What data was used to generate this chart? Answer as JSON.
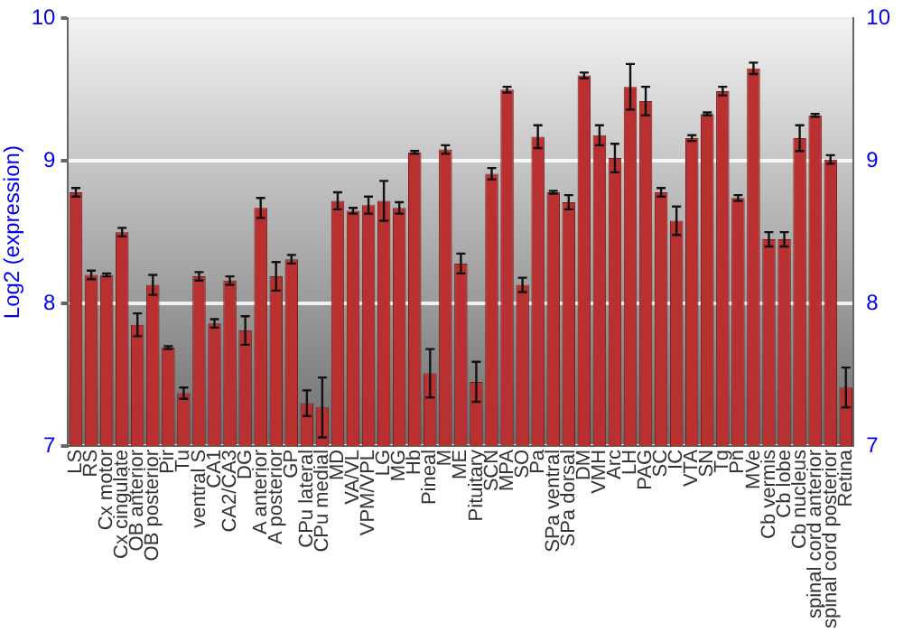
{
  "chart_data": {
    "type": "bar",
    "ylabel": "Log2 (expression)",
    "categories": [
      "LS",
      "RS",
      "Cx motor",
      "Cx cingulate",
      "OB anterior",
      "OB posterior",
      "Pir",
      "Tu",
      "ventral S",
      "CA1",
      "CA2/CA3",
      "DG",
      "A anterior",
      "A posterior",
      "GP",
      "CPu lateral",
      "CPu medial",
      "MD",
      "VA/VL",
      "VPM/VPL",
      "LG",
      "MG",
      "Hb",
      "Pineal",
      "M",
      "ME",
      "Pituitary",
      "SCN",
      "MPA",
      "SO",
      "Pa",
      "SPa ventral",
      "SPa dorsal",
      "DM",
      "VMH",
      "Arc",
      "LH",
      "PAG",
      "SC",
      "IC",
      "VTA",
      "SN",
      "Tg",
      "Pn",
      "MVe",
      "Cb vermis",
      "Cb lobe",
      "Cb nucleus",
      "spinal cord anterior",
      "spinal cord posterior",
      "Retina"
    ],
    "values": [
      8.78,
      8.2,
      8.2,
      8.5,
      7.85,
      8.13,
      7.69,
      7.37,
      8.19,
      7.86,
      8.16,
      7.81,
      8.67,
      8.19,
      8.31,
      7.3,
      7.27,
      8.72,
      8.65,
      8.69,
      8.72,
      8.67,
      9.06,
      7.51,
      9.08,
      8.28,
      7.45,
      8.91,
      9.5,
      8.13,
      9.17,
      8.78,
      8.71,
      9.6,
      9.18,
      9.02,
      9.52,
      9.42,
      8.78,
      8.58,
      9.16,
      9.33,
      9.49,
      8.74,
      9.65,
      8.45,
      8.45,
      9.16,
      9.32,
      9.01,
      7.41
    ],
    "errors": [
      0.03,
      0.03,
      0.01,
      0.03,
      0.08,
      0.07,
      0.01,
      0.04,
      0.03,
      0.03,
      0.03,
      0.1,
      0.07,
      0.1,
      0.03,
      0.09,
      0.21,
      0.06,
      0.02,
      0.06,
      0.14,
      0.04,
      0.01,
      0.17,
      0.03,
      0.07,
      0.14,
      0.04,
      0.02,
      0.05,
      0.08,
      0.01,
      0.05,
      0.02,
      0.07,
      0.1,
      0.16,
      0.1,
      0.03,
      0.1,
      0.02,
      0.01,
      0.03,
      0.02,
      0.04,
      0.05,
      0.05,
      0.09,
      0.01,
      0.03,
      0.14
    ],
    "color": "#b83030",
    "ylim": [
      7,
      10
    ],
    "yticks": [
      7,
      8,
      9,
      10
    ],
    "y2lim": [
      7,
      10
    ],
    "y2ticks": [
      7,
      8,
      9,
      10
    ],
    "grid": "y",
    "legend": false
  }
}
